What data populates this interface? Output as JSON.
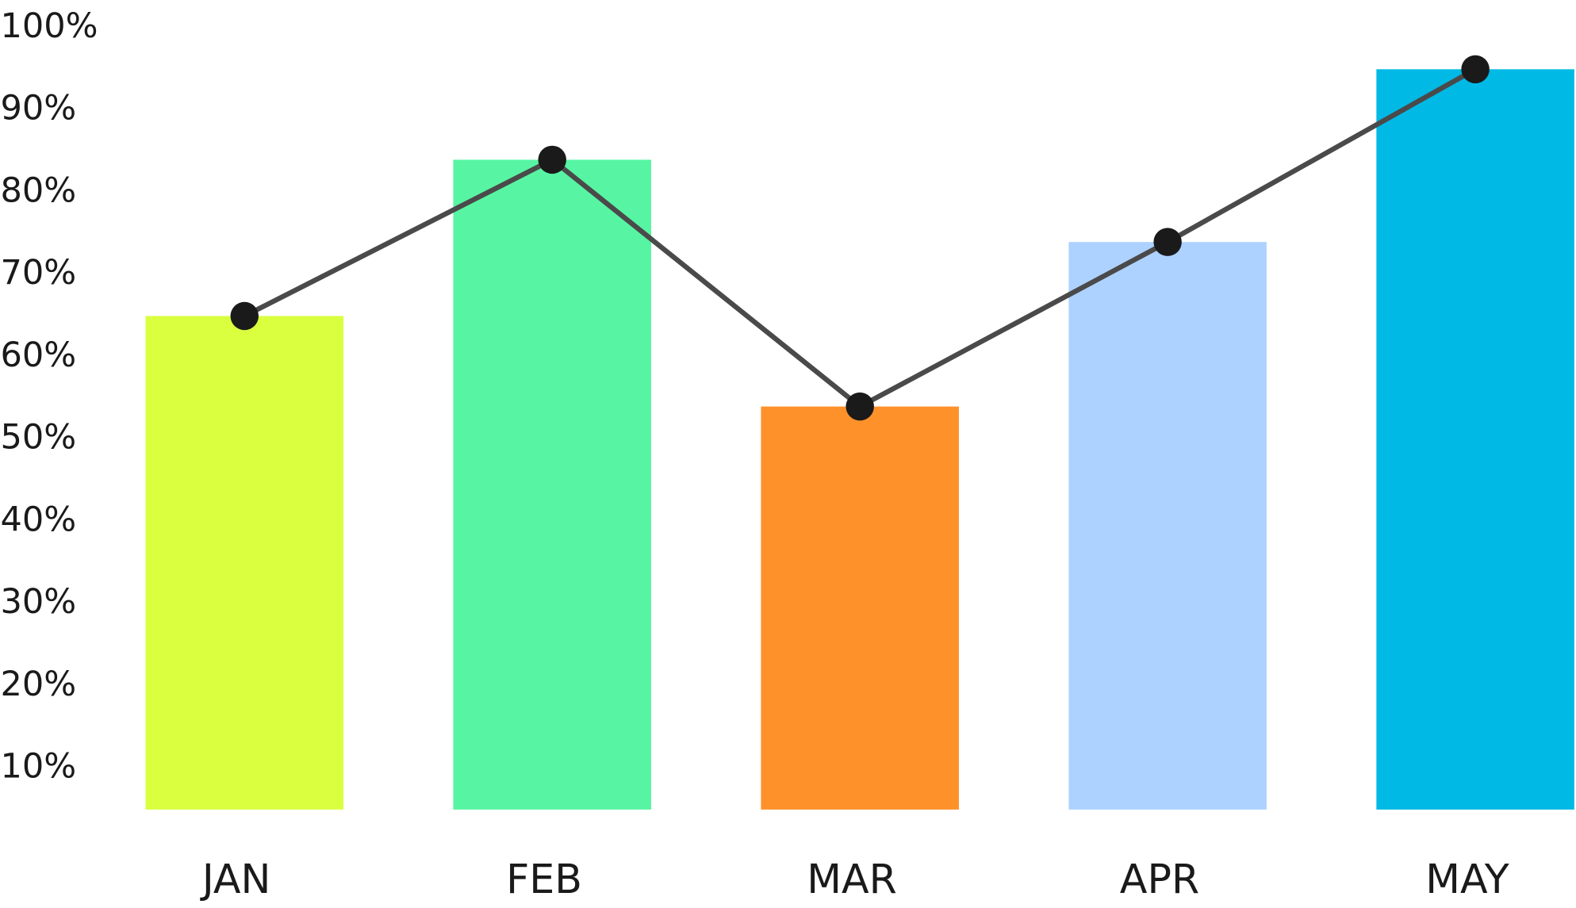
{
  "chart_data": {
    "type": "combo",
    "categories": [
      "JAN",
      "FEB",
      "MAR",
      "APR",
      "MAY"
    ],
    "values": [
      65,
      84,
      54,
      74,
      95
    ],
    "colors": [
      "#d9ff3f",
      "#57f5a3",
      "#ff912b",
      "#aed2ff",
      "#00b9e5"
    ],
    "line_values": [
      65,
      84,
      54,
      74,
      95
    ],
    "line_color": "#4a4a4a",
    "marker_color": "#1a1a1a",
    "ylim": [
      5,
      100
    ],
    "yticks": [
      {
        "value": 100,
        "label": "100%"
      },
      {
        "value": 90,
        "label": "90%"
      },
      {
        "value": 80,
        "label": "80%"
      },
      {
        "value": 70,
        "label": "70%"
      },
      {
        "value": 60,
        "label": "60%"
      },
      {
        "value": 50,
        "label": "50%"
      },
      {
        "value": 40,
        "label": "40%"
      },
      {
        "value": 30,
        "label": "30%"
      },
      {
        "value": 20,
        "label": "20%"
      },
      {
        "value": 10,
        "label": "10%"
      }
    ]
  }
}
